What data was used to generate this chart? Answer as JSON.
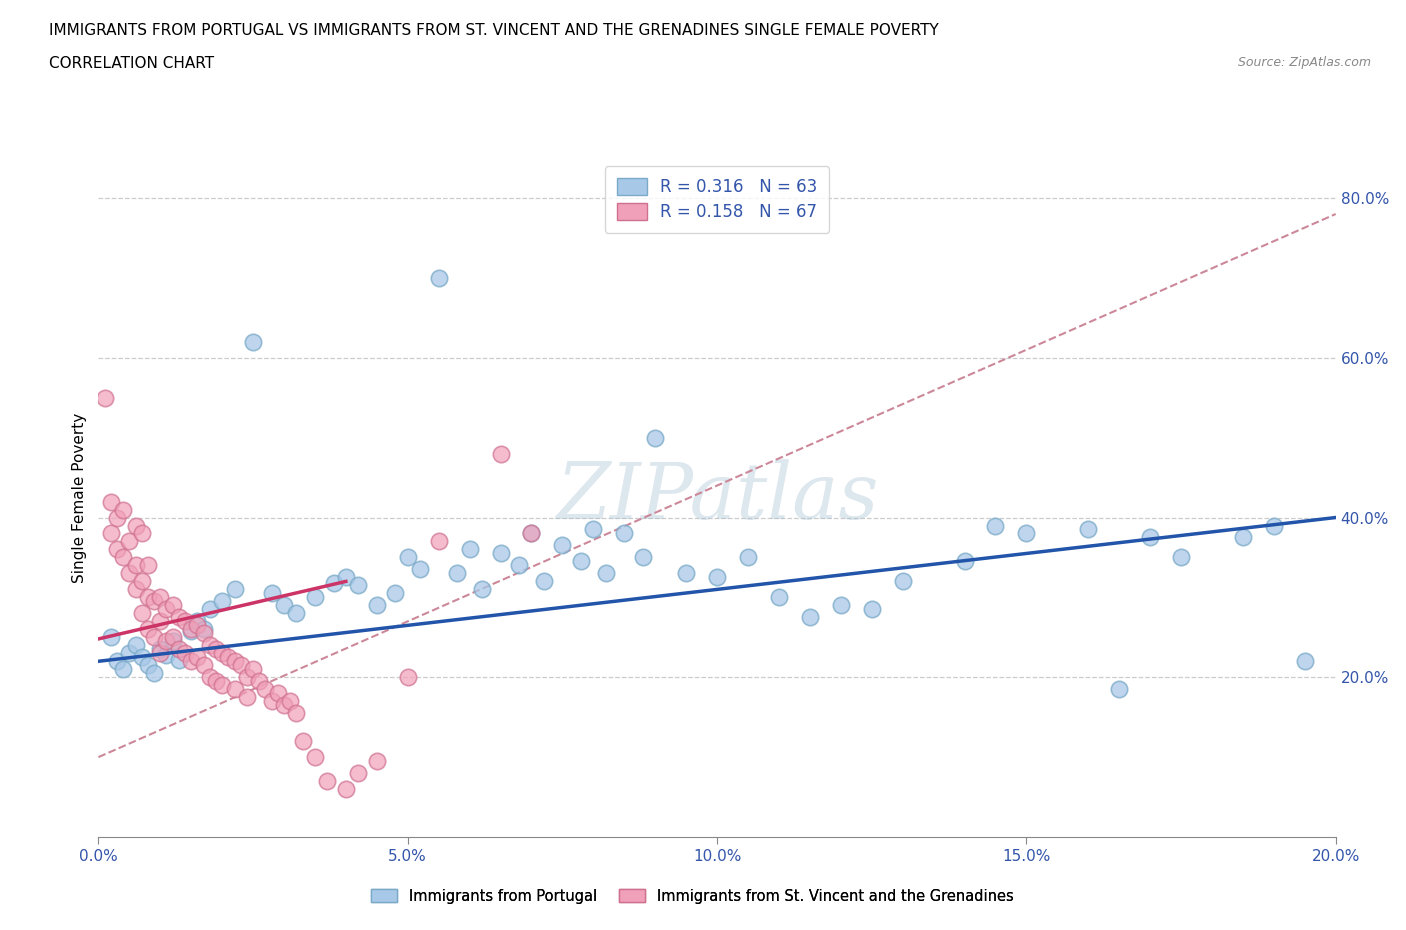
{
  "title_line1": "IMMIGRANTS FROM PORTUGAL VS IMMIGRANTS FROM ST. VINCENT AND THE GRENADINES SINGLE FEMALE POVERTY",
  "title_line2": "CORRELATION CHART",
  "source_text": "Source: ZipAtlas.com",
  "ylabel": "Single Female Poverty",
  "watermark": "ZIPatlas",
  "legend_entries": [
    {
      "label": "Immigrants from Portugal",
      "color": "#a8c8e8",
      "edge_color": "#7aaac8",
      "R": "0.316",
      "N": "63"
    },
    {
      "label": "Immigrants from St. Vincent and the Grenadines",
      "color": "#f0a0b8",
      "edge_color": "#d07090",
      "R": "0.158",
      "N": "67"
    }
  ],
  "trend_blue_color": "#2255aa",
  "trend_pink_color": "#cc3366",
  "trend_dashed_color": "#cc8899",
  "xlim": [
    0.0,
    0.2
  ],
  "ylim": [
    0.0,
    0.85
  ],
  "xtick_labels": [
    "0.0%",
    "5.0%",
    "10.0%",
    "15.0%",
    "20.0%"
  ],
  "xtick_values": [
    0.0,
    0.05,
    0.1,
    0.15,
    0.2
  ],
  "ytick_labels": [
    "20.0%",
    "40.0%",
    "60.0%",
    "80.0%"
  ],
  "ytick_values": [
    0.2,
    0.4,
    0.6,
    0.8
  ],
  "blue_R": 0.316,
  "blue_N": 63,
  "pink_R": 0.158,
  "pink_N": 67,
  "blue_scatter_x": [
    0.002,
    0.003,
    0.004,
    0.005,
    0.006,
    0.007,
    0.008,
    0.009,
    0.01,
    0.011,
    0.012,
    0.013,
    0.015,
    0.016,
    0.017,
    0.018,
    0.02,
    0.022,
    0.025,
    0.028,
    0.03,
    0.032,
    0.035,
    0.038,
    0.04,
    0.042,
    0.045,
    0.048,
    0.05,
    0.052,
    0.055,
    0.058,
    0.06,
    0.062,
    0.065,
    0.068,
    0.07,
    0.072,
    0.075,
    0.078,
    0.08,
    0.082,
    0.085,
    0.088,
    0.09,
    0.095,
    0.1,
    0.105,
    0.11,
    0.115,
    0.12,
    0.125,
    0.13,
    0.14,
    0.145,
    0.15,
    0.16,
    0.165,
    0.17,
    0.175,
    0.185,
    0.19,
    0.195
  ],
  "blue_scatter_y": [
    0.25,
    0.22,
    0.21,
    0.23,
    0.24,
    0.225,
    0.215,
    0.205,
    0.235,
    0.228,
    0.245,
    0.222,
    0.258,
    0.27,
    0.26,
    0.285,
    0.295,
    0.31,
    0.62,
    0.305,
    0.29,
    0.28,
    0.3,
    0.318,
    0.325,
    0.315,
    0.29,
    0.305,
    0.35,
    0.335,
    0.7,
    0.33,
    0.36,
    0.31,
    0.355,
    0.34,
    0.38,
    0.32,
    0.365,
    0.345,
    0.385,
    0.33,
    0.38,
    0.35,
    0.5,
    0.33,
    0.325,
    0.35,
    0.3,
    0.275,
    0.29,
    0.285,
    0.32,
    0.345,
    0.39,
    0.38,
    0.385,
    0.185,
    0.375,
    0.35,
    0.375,
    0.39,
    0.22
  ],
  "pink_scatter_x": [
    0.001,
    0.002,
    0.002,
    0.003,
    0.003,
    0.004,
    0.004,
    0.005,
    0.005,
    0.006,
    0.006,
    0.006,
    0.007,
    0.007,
    0.007,
    0.008,
    0.008,
    0.008,
    0.009,
    0.009,
    0.01,
    0.01,
    0.01,
    0.011,
    0.011,
    0.012,
    0.012,
    0.013,
    0.013,
    0.014,
    0.014,
    0.015,
    0.015,
    0.016,
    0.016,
    0.017,
    0.017,
    0.018,
    0.018,
    0.019,
    0.019,
    0.02,
    0.02,
    0.021,
    0.022,
    0.022,
    0.023,
    0.024,
    0.024,
    0.025,
    0.026,
    0.027,
    0.028,
    0.029,
    0.03,
    0.031,
    0.032,
    0.033,
    0.035,
    0.037,
    0.04,
    0.042,
    0.045,
    0.05,
    0.055,
    0.065,
    0.07
  ],
  "pink_scatter_y": [
    0.55,
    0.42,
    0.38,
    0.4,
    0.36,
    0.41,
    0.35,
    0.37,
    0.33,
    0.39,
    0.34,
    0.31,
    0.38,
    0.32,
    0.28,
    0.34,
    0.3,
    0.26,
    0.295,
    0.25,
    0.3,
    0.27,
    0.23,
    0.285,
    0.245,
    0.29,
    0.25,
    0.275,
    0.235,
    0.27,
    0.23,
    0.26,
    0.22,
    0.265,
    0.225,
    0.255,
    0.215,
    0.24,
    0.2,
    0.235,
    0.195,
    0.23,
    0.19,
    0.225,
    0.22,
    0.185,
    0.215,
    0.2,
    0.175,
    0.21,
    0.195,
    0.185,
    0.17,
    0.18,
    0.165,
    0.17,
    0.155,
    0.12,
    0.1,
    0.07,
    0.06,
    0.08,
    0.095,
    0.2,
    0.37,
    0.48,
    0.38
  ],
  "blue_trend_x0": 0.0,
  "blue_trend_y0": 0.22,
  "blue_trend_x1": 0.2,
  "blue_trend_y1": 0.4,
  "pink_trend_x0": 0.0,
  "pink_trend_y0": 0.248,
  "pink_trend_x1": 0.04,
  "pink_trend_y1": 0.32,
  "dashed_trend_x0": 0.0,
  "dashed_trend_y0": 0.1,
  "dashed_trend_x1": 0.2,
  "dashed_trend_y1": 0.78
}
